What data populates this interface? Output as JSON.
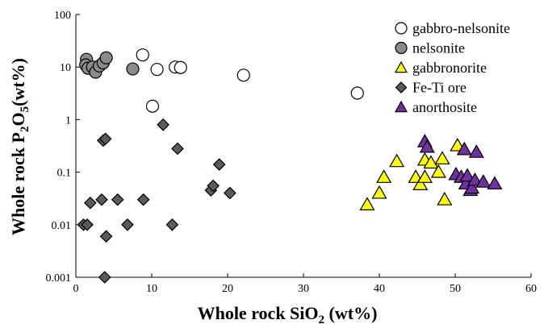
{
  "chart_data": {
    "type": "scatter",
    "title": "",
    "xlabel": "Whole rock SiO",
    "xlabel_sub": "2",
    "xlabel_suffix": " (wt%)",
    "ylabel": "Whole rock P",
    "ylabel_sub1": "2",
    "ylabel_mid": "O",
    "ylabel_sub2": "5",
    "ylabel_suffix": "(wt%)",
    "xlim": [
      0,
      60
    ],
    "ylim": [
      0.001,
      100
    ],
    "yscale": "log",
    "x_ticks": [
      "0",
      "10",
      "20",
      "30",
      "40",
      "50",
      "60"
    ],
    "y_ticks": [
      "0.001",
      "0.01",
      "0.1",
      "1",
      "10",
      "100"
    ],
    "legend_position": "top-right",
    "series": [
      {
        "name": "gabbro-nelsonite",
        "marker": "circle",
        "fill": "#ffffff",
        "stroke": "#000000",
        "points": [
          [
            8.8,
            17
          ],
          [
            10.1,
            1.8
          ],
          [
            10.7,
            9
          ],
          [
            13.1,
            10
          ],
          [
            13.8,
            9.8
          ],
          [
            22.1,
            7
          ],
          [
            37.1,
            3.2
          ]
        ]
      },
      {
        "name": "nelsonite",
        "marker": "circle",
        "fill": "#8a8a8a",
        "stroke": "#000000",
        "points": [
          [
            1.4,
            14
          ],
          [
            1.3,
            11
          ],
          [
            1.6,
            9.5
          ],
          [
            2.2,
            10
          ],
          [
            2.6,
            8
          ],
          [
            3.1,
            10.5
          ],
          [
            3.6,
            12
          ],
          [
            4.0,
            15
          ],
          [
            7.5,
            9.2
          ]
        ]
      },
      {
        "name": "gabbronorite",
        "marker": "triangle",
        "fill": "#ffff00",
        "stroke": "#000000",
        "points": [
          [
            38.4,
            0.024
          ],
          [
            40.0,
            0.04
          ],
          [
            40.6,
            0.08
          ],
          [
            42.3,
            0.16
          ],
          [
            44.8,
            0.08
          ],
          [
            45.4,
            0.058
          ],
          [
            46.0,
            0.08
          ],
          [
            46.0,
            0.17
          ],
          [
            46.8,
            0.15
          ],
          [
            47.8,
            0.1
          ],
          [
            48.3,
            0.18
          ],
          [
            48.6,
            0.03
          ],
          [
            50.3,
            0.32
          ]
        ]
      },
      {
        "name": "Fe-Ti ore",
        "marker": "diamond",
        "fill": "#5a5a5a",
        "stroke": "#000000",
        "points": [
          [
            1.0,
            0.01
          ],
          [
            1.5,
            0.01
          ],
          [
            1.9,
            0.026
          ],
          [
            3.4,
            0.03
          ],
          [
            3.6,
            0.4
          ],
          [
            3.9,
            0.43
          ],
          [
            4.0,
            0.006
          ],
          [
            3.8,
            0.001
          ],
          [
            5.5,
            0.03
          ],
          [
            6.8,
            0.01
          ],
          [
            8.9,
            0.03
          ],
          [
            11.5,
            0.8
          ],
          [
            12.7,
            0.01
          ],
          [
            13.4,
            0.28
          ],
          [
            17.8,
            0.045
          ],
          [
            18.1,
            0.055
          ],
          [
            18.9,
            0.14
          ],
          [
            20.3,
            0.04
          ]
        ]
      },
      {
        "name": "anorthosite",
        "marker": "triangle",
        "fill": "#7030a0",
        "stroke": "#000000",
        "points": [
          [
            46.0,
            0.38
          ],
          [
            46.3,
            0.3
          ],
          [
            50.1,
            0.09
          ],
          [
            50.8,
            0.08
          ],
          [
            51.2,
            0.27
          ],
          [
            51.4,
            0.06
          ],
          [
            51.6,
            0.085
          ],
          [
            52.0,
            0.045
          ],
          [
            52.2,
            0.05
          ],
          [
            52.6,
            0.07
          ],
          [
            52.8,
            0.24
          ],
          [
            53.7,
            0.065
          ],
          [
            55.2,
            0.06
          ]
        ]
      }
    ]
  }
}
